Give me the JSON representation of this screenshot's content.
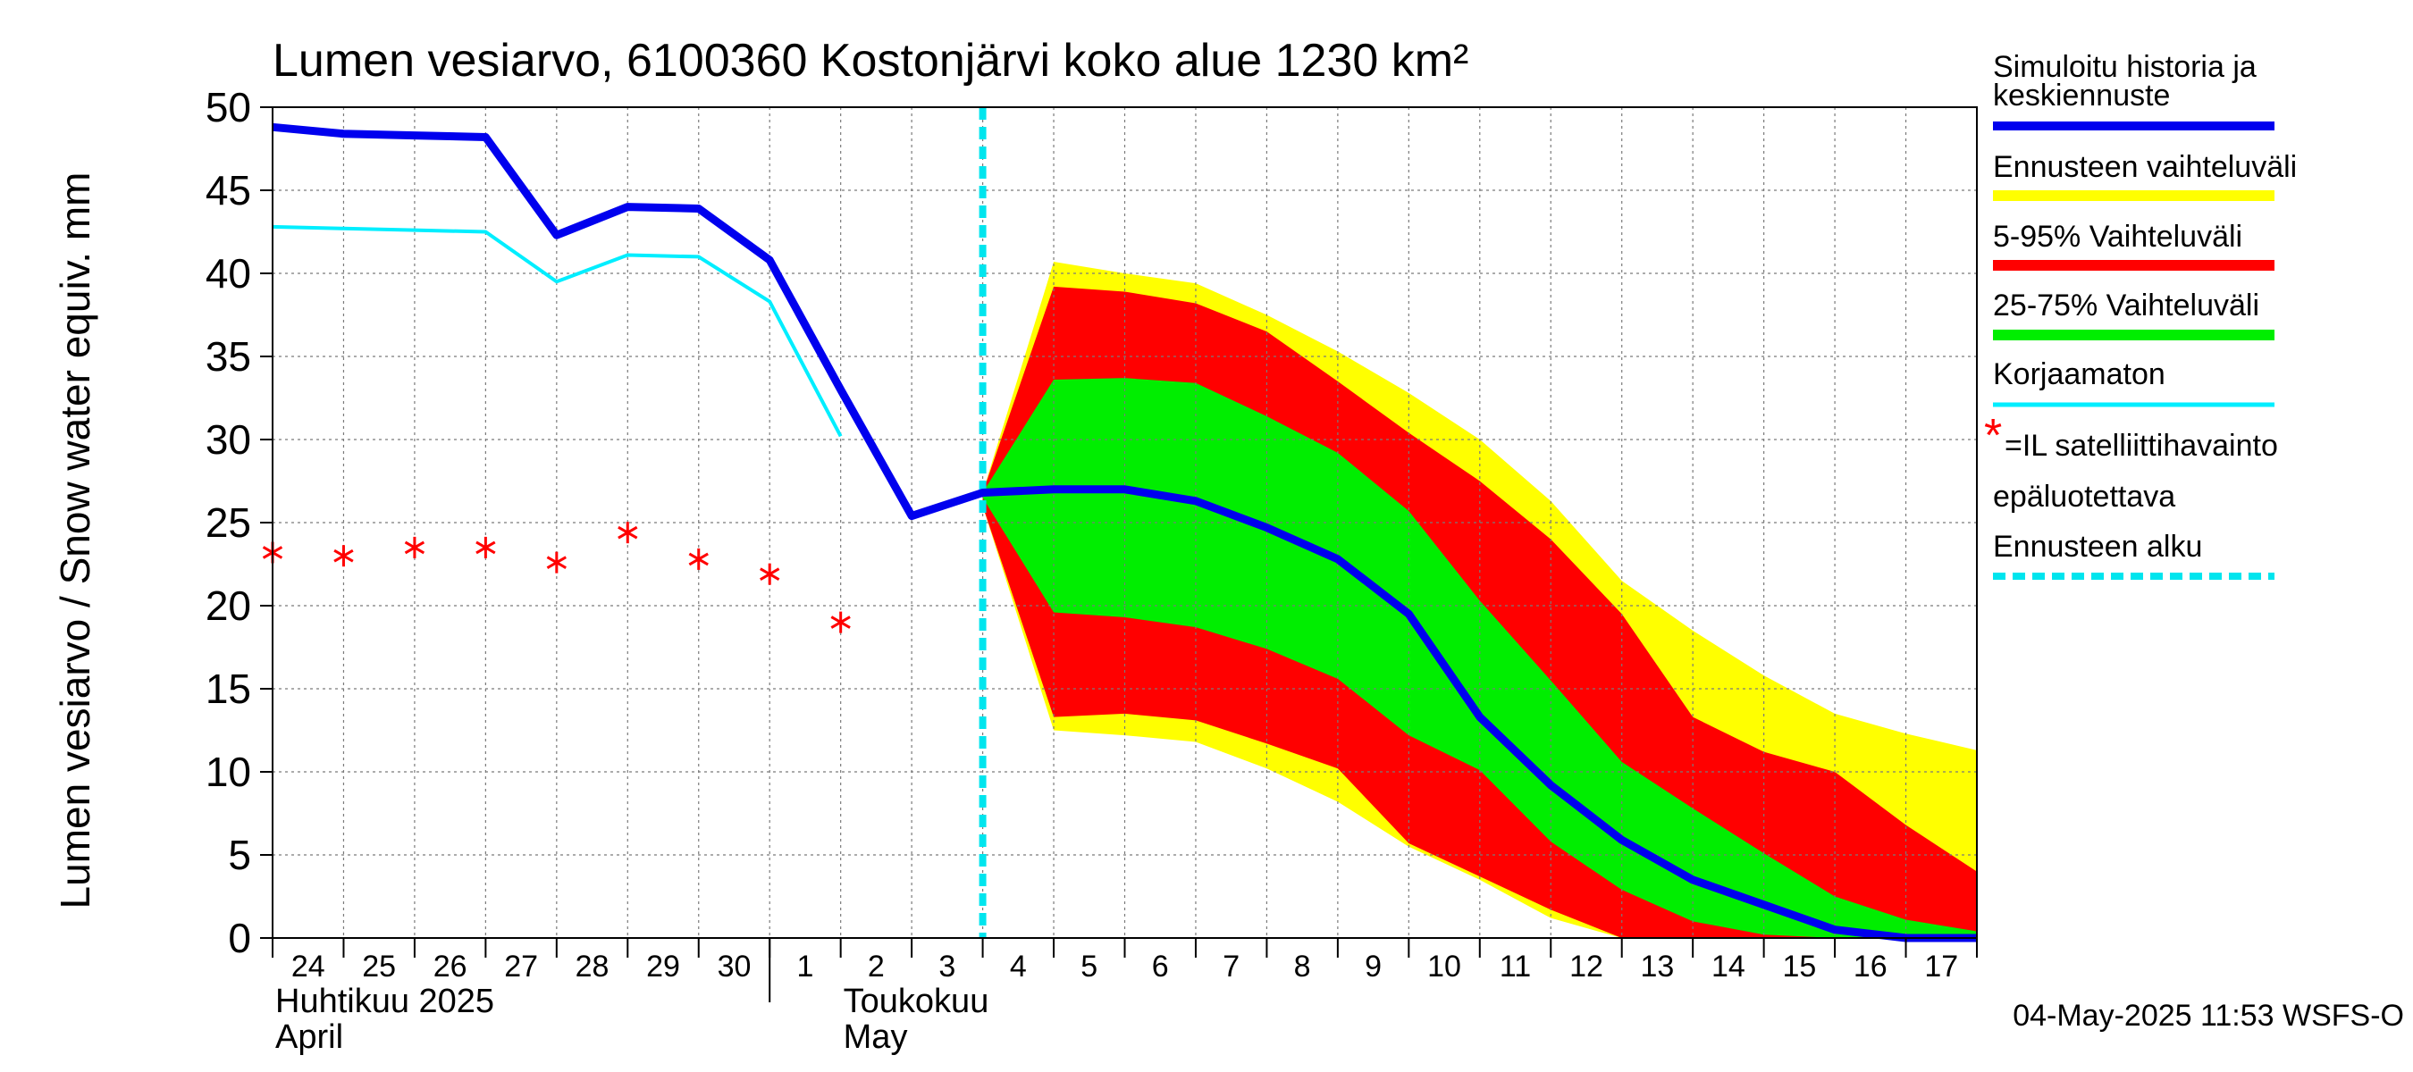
{
  "chart_data": {
    "type": "area",
    "title": "Lumen vesiarvo, 6100360 Kostonjärvi koko alue 1230 km²",
    "ylabel": "Lumen vesiarvo / Snow water equiv.    mm",
    "ylim": [
      0,
      50
    ],
    "yticks": [
      0,
      5,
      10,
      15,
      20,
      25,
      30,
      35,
      40,
      45,
      50
    ],
    "x_range": [
      0,
      24
    ],
    "day_labels": [
      "24",
      "25",
      "26",
      "27",
      "28",
      "29",
      "30",
      "1",
      "2",
      "3",
      "4",
      "5",
      "6",
      "7",
      "8",
      "9",
      "10",
      "11",
      "12",
      "13",
      "14",
      "15",
      "16",
      "17"
    ],
    "month_labels": [
      {
        "line1": "Huhtikuu  2025",
        "line2": "April",
        "x": 0
      },
      {
        "line1": "Toukokuu",
        "line2": "May",
        "x": 8
      }
    ],
    "month_divider_x": 7,
    "forecast_start_x": 10,
    "grid": true,
    "series": [
      {
        "name": "Simuloitu historia ja keskiennuste",
        "color": "#0000ee",
        "x": [
          0,
          1,
          2,
          3,
          4,
          5,
          6,
          7,
          8,
          9,
          10,
          11,
          12,
          13,
          14,
          15,
          16,
          17,
          18,
          19,
          20,
          21,
          22,
          23,
          24
        ],
        "values": [
          48.8,
          48.4,
          48.3,
          48.2,
          42.3,
          44.0,
          43.9,
          40.8,
          33.0,
          25.4,
          26.8,
          27.0,
          27.0,
          26.3,
          24.7,
          22.8,
          19.5,
          13.3,
          9.2,
          5.9,
          3.5,
          2.0,
          0.5,
          0.0,
          0.0
        ]
      },
      {
        "name": "Korjaamaton",
        "color": "#00eeff",
        "x": [
          0,
          1,
          2,
          3,
          4,
          5,
          6,
          7,
          8
        ],
        "values": [
          42.8,
          42.7,
          42.6,
          42.5,
          39.5,
          41.1,
          41.0,
          38.3,
          30.2
        ]
      }
    ],
    "bands": [
      {
        "name": "Ennusteen vaihteluväli",
        "color": "#ffff00",
        "x": [
          10,
          11,
          12,
          13,
          14,
          15,
          16,
          17,
          18,
          19,
          20,
          21,
          22,
          23,
          24
        ],
        "upper": [
          26.8,
          40.7,
          40.0,
          39.4,
          37.5,
          35.3,
          32.8,
          30.0,
          26.3,
          21.5,
          18.5,
          15.8,
          13.5,
          12.3,
          11.3
        ],
        "lower": [
          26.0,
          12.5,
          12.2,
          11.8,
          10.2,
          8.2,
          5.5,
          3.5,
          1.2,
          0,
          0,
          0,
          0,
          0,
          0
        ]
      },
      {
        "name": "5-95% Vaihteluväli",
        "color": "#ff0000",
        "x": [
          10,
          11,
          12,
          13,
          14,
          15,
          16,
          17,
          18,
          19,
          20,
          21,
          22,
          23,
          24
        ],
        "upper": [
          26.8,
          39.2,
          38.9,
          38.2,
          36.5,
          33.5,
          30.4,
          27.5,
          24.0,
          19.5,
          13.3,
          11.2,
          10.0,
          6.8,
          4.0
        ],
        "lower": [
          26.0,
          13.3,
          13.5,
          13.1,
          11.7,
          10.2,
          5.7,
          3.7,
          1.7,
          0,
          0,
          0,
          0,
          0,
          0
        ]
      },
      {
        "name": "25-75% Vaihteluväli",
        "color": "#00ee00",
        "x": [
          10,
          11,
          12,
          13,
          14,
          15,
          16,
          17,
          18,
          19,
          20,
          21,
          22,
          23,
          24
        ],
        "upper": [
          26.8,
          33.6,
          33.7,
          33.4,
          31.4,
          29.2,
          25.7,
          20.3,
          15.5,
          10.6,
          7.8,
          5.1,
          2.5,
          1.1,
          0.4
        ],
        "lower": [
          26.5,
          19.6,
          19.3,
          18.7,
          17.4,
          15.6,
          12.2,
          10.1,
          5.8,
          2.9,
          1.0,
          0.2,
          0,
          0,
          0
        ]
      }
    ],
    "observations": {
      "name": "=IL satelliittihavainto epäluotettava",
      "color": "#ff0000",
      "x": [
        0,
        1,
        2,
        3,
        4,
        5,
        6,
        7,
        8
      ],
      "values": [
        23.2,
        23.0,
        23.5,
        23.5,
        22.6,
        24.4,
        22.8,
        21.9,
        19.0
      ]
    }
  },
  "legend": {
    "sim": "Simuloitu historia ja",
    "sim2": "keskiennuste",
    "range": "Ennusteen vaihteluväli",
    "p595": "5-95% Vaihteluväli",
    "p2575": "25-75% Vaihteluväli",
    "uncorrected": "Korjaamaton",
    "obs_marker": "*",
    "obs": "=IL satelliittihavainto",
    "obs2": "epäluotettava",
    "forecast_start": "Ennusteen alku"
  },
  "colors": {
    "sim": "#0000ee",
    "uncorrected": "#00eeff",
    "range": "#ffff00",
    "p595": "#ff0000",
    "p2575": "#00ee00",
    "forecast_start": "#00e5ee",
    "obs": "#ff0000"
  },
  "footer": {
    "timestamp": "04-May-2025 11:53 WSFS-O"
  }
}
